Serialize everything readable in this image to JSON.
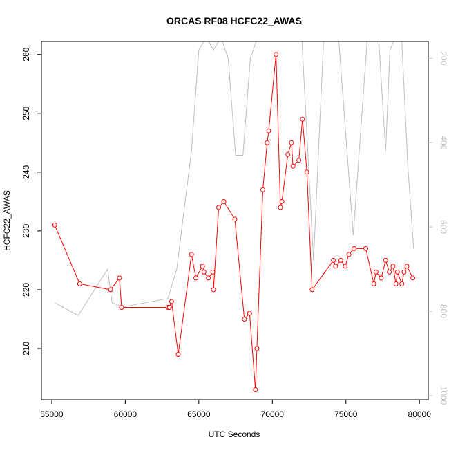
{
  "chart_data": {
    "type": "line",
    "title": "ORCAS RF08 HCFC22_AWAS",
    "xlabel": "UTC Seconds",
    "ylabel": "HCFC22_AWAS",
    "xlim": [
      54300,
      80600
    ],
    "ylim": [
      201.3,
      262.2
    ],
    "y2lim": [
      1010,
      160
    ],
    "xticks": [
      55000,
      60000,
      65000,
      70000,
      75000,
      80000
    ],
    "xtick_labels": [
      "55000",
      "60000",
      "65000",
      "70000",
      "75000",
      "80000"
    ],
    "yticks": [
      210,
      220,
      230,
      240,
      250,
      260
    ],
    "ytick_labels": [
      "210",
      "220",
      "230",
      "240",
      "250",
      "260"
    ],
    "y2ticks": [
      200,
      400,
      600,
      800,
      1000
    ],
    "y2tick_labels": [
      "200",
      "400",
      "600",
      "800",
      "1000"
    ],
    "grid": false,
    "legend": "none",
    "series": [
      {
        "axis": "left",
        "color": "#ff0000",
        "marker": "open-circle",
        "x": [
          55200,
          56900,
          59000,
          59600,
          59750,
          62900,
          63000,
          63150,
          63600,
          64500,
          64800,
          65250,
          65350,
          65650,
          65950,
          66000,
          66350,
          66700,
          67450,
          68100,
          68450,
          68850,
          68950,
          69350,
          69650,
          69750,
          70250,
          70550,
          70650,
          71050,
          71300,
          71400,
          71800,
          72050,
          72350,
          72700,
          74150,
          74300,
          74650,
          74950,
          75200,
          75550,
          76350,
          76900,
          77050,
          77400,
          77700,
          77950,
          78200,
          78400,
          78500,
          78800,
          78950,
          79150,
          79550
        ],
        "y": [
          231,
          221,
          220,
          222,
          217,
          217,
          217,
          218,
          209,
          226,
          222,
          224,
          223,
          222,
          223,
          220,
          234,
          235,
          232,
          215,
          216,
          203,
          210,
          237,
          245,
          247,
          260,
          234,
          235,
          243,
          245,
          241,
          242,
          249,
          240,
          220,
          225,
          224,
          225,
          224,
          226,
          227,
          227,
          221,
          223,
          222,
          225,
          223,
          224,
          221,
          223,
          221,
          223,
          224,
          222
        ]
      },
      {
        "axis": "right",
        "color": "#bebebe",
        "marker": "none",
        "x": [
          55200,
          56800,
          58800,
          59100,
          59800,
          62900,
          63500,
          64000,
          64500,
          65000,
          65500,
          66000,
          66500,
          67000,
          67500,
          68000,
          68500,
          69000,
          69500,
          70000,
          70300,
          70500,
          70800,
          71200,
          71600,
          72000,
          72800,
          73500,
          74500,
          75500,
          76500,
          77200,
          77700,
          78000,
          78500,
          78800,
          79200,
          79600
        ],
        "y": [
          780,
          810,
          700,
          780,
          790,
          770,
          700,
          560,
          420,
          180,
          150,
          180,
          150,
          200,
          430,
          430,
          200,
          150,
          140,
          130,
          140,
          150,
          140,
          120,
          130,
          150,
          680,
          145,
          150,
          620,
          130,
          140,
          420,
          180,
          140,
          160,
          450,
          650
        ]
      }
    ]
  }
}
